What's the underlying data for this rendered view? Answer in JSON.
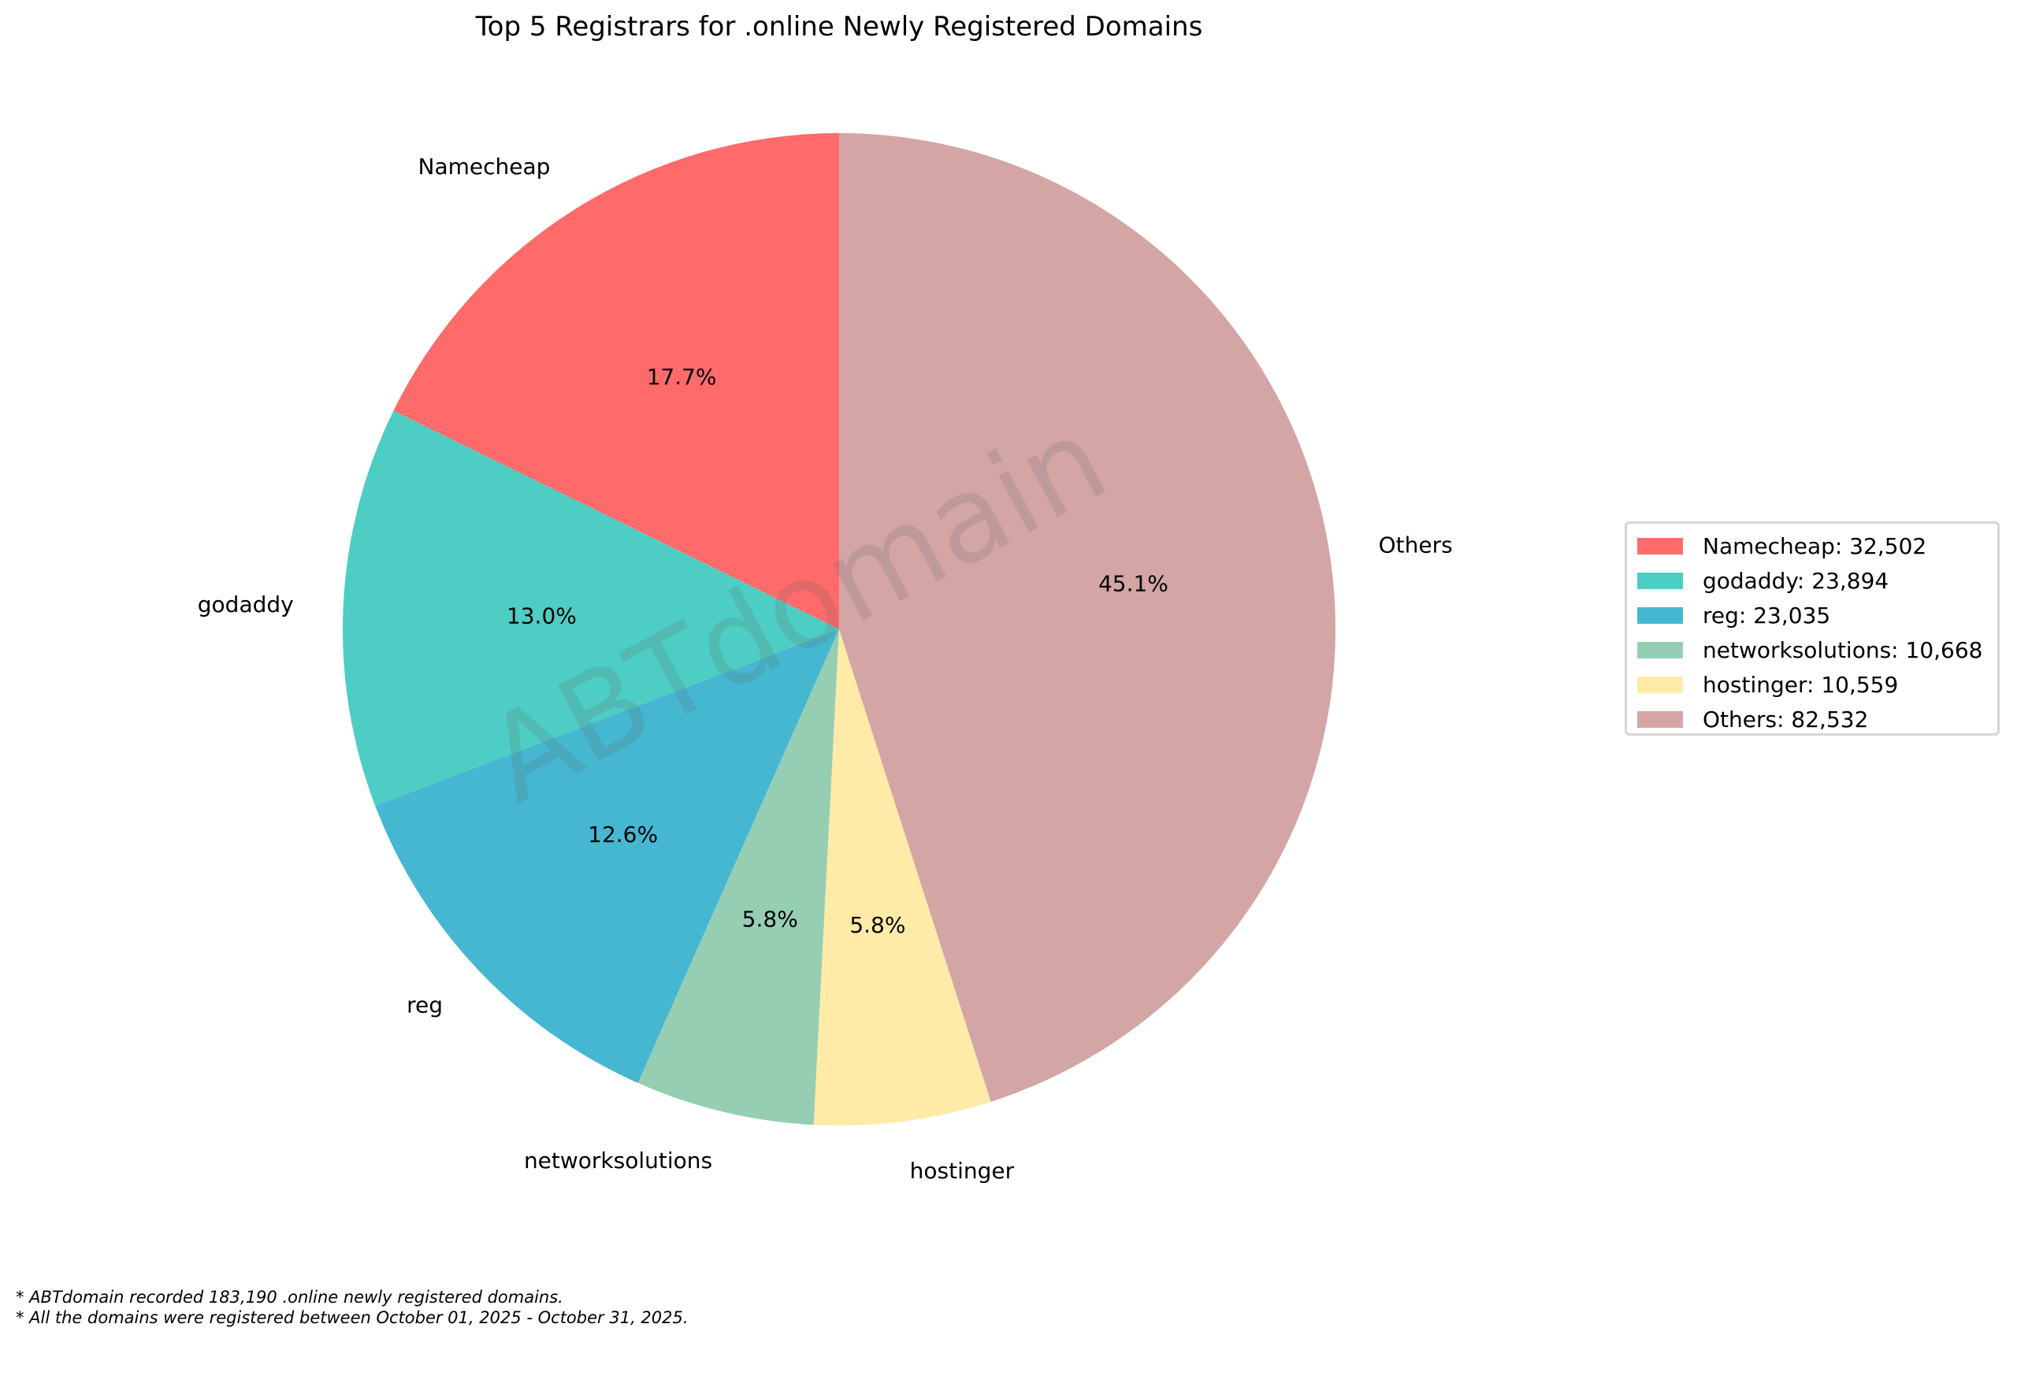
{
  "chart_data": {
    "type": "pie",
    "title": "Top 5 Registrars for .online Newly Registered Domains",
    "categories": [
      "Namecheap",
      "godaddy",
      "reg",
      "networksolutions",
      "hostinger",
      "Others"
    ],
    "values": [
      32502,
      23894,
      23035,
      10668,
      10559,
      82532
    ],
    "percent_labels": [
      "17.7%",
      "13.0%",
      "12.6%",
      "5.8%",
      "5.8%",
      "45.1%"
    ],
    "colors": [
      "#ff6b6b",
      "#4ecdc4",
      "#45b7d1",
      "#96ceb4",
      "#ffeaa7",
      "#d4a5a5"
    ],
    "legend_labels": [
      "Namecheap: 32,502",
      "godaddy: 23,894",
      "reg: 23,035",
      "networksolutions: 10,668",
      "hostinger: 10,559",
      "Others: 82,532"
    ],
    "start_angle": 90,
    "direction": "counterclockwise",
    "legend_position": "right",
    "watermark": "ABTdomain"
  },
  "footnotes": [
    "* ABTdomain recorded 183,190 .online newly registered domains.",
    "* All the domains were registered between October 01, 2025 - October 31, 2025."
  ]
}
